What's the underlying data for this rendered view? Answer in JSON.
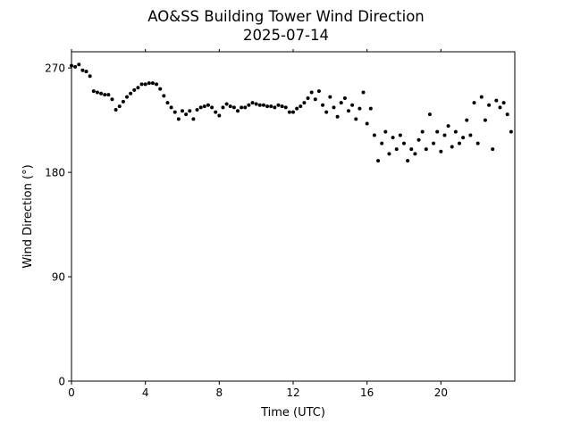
{
  "chart_data": {
    "type": "scatter",
    "title": "AO&SS Building Tower Wind Direction",
    "subtitle": "2025-07-14",
    "xlabel": "Time (UTC)",
    "ylabel": "Wind Direction (°)",
    "xlim": [
      0,
      24
    ],
    "ylim": [
      0,
      284
    ],
    "xticks": [
      0,
      4,
      8,
      12,
      16,
      20
    ],
    "xtick_labels": [
      "0",
      "4",
      "8",
      "12",
      "16",
      "20"
    ],
    "yticks": [
      0,
      90,
      180,
      270
    ],
    "ytick_labels": [
      "0",
      "90",
      "180",
      "270"
    ],
    "grid": false,
    "marker_color": "#000000",
    "x": [
      0.0,
      0.2,
      0.4,
      0.6,
      0.8,
      1.0,
      1.2,
      1.4,
      1.6,
      1.8,
      2.0,
      2.2,
      2.4,
      2.6,
      2.8,
      3.0,
      3.2,
      3.4,
      3.6,
      3.8,
      4.0,
      4.2,
      4.4,
      4.6,
      4.8,
      5.0,
      5.2,
      5.4,
      5.6,
      5.8,
      6.0,
      6.2,
      6.4,
      6.6,
      6.8,
      7.0,
      7.2,
      7.4,
      7.6,
      7.8,
      8.0,
      8.2,
      8.4,
      8.6,
      8.8,
      9.0,
      9.2,
      9.4,
      9.6,
      9.8,
      10.0,
      10.2,
      10.4,
      10.6,
      10.8,
      11.0,
      11.2,
      11.4,
      11.6,
      11.8,
      12.0,
      12.2,
      12.4,
      12.6,
      12.8,
      13.0,
      13.2,
      13.4,
      13.6,
      13.8,
      14.0,
      14.2,
      14.4,
      14.6,
      14.8,
      15.0,
      15.2,
      15.4,
      15.6,
      15.8,
      16.0,
      16.2,
      16.4,
      16.6,
      16.8,
      17.0,
      17.2,
      17.4,
      17.6,
      17.8,
      18.0,
      18.2,
      18.4,
      18.6,
      18.8,
      19.0,
      19.2,
      19.4,
      19.6,
      19.8,
      20.0,
      20.2,
      20.4,
      20.6,
      20.8,
      21.0,
      21.2,
      21.4,
      21.6,
      21.8,
      22.0,
      22.2,
      22.4,
      22.6,
      22.8,
      23.0,
      23.2,
      23.4,
      23.6,
      23.8
    ],
    "y": [
      272,
      271,
      273,
      268,
      267,
      263,
      250,
      249,
      248,
      247,
      247,
      243,
      234,
      237,
      241,
      245,
      248,
      251,
      253,
      256,
      256,
      257,
      257,
      256,
      252,
      246,
      240,
      236,
      232,
      226,
      233,
      230,
      233,
      226,
      234,
      236,
      237,
      238,
      236,
      232,
      229,
      236,
      239,
      237,
      236,
      233,
      236,
      236,
      238,
      240,
      239,
      238,
      238,
      237,
      237,
      236,
      238,
      237,
      236,
      232,
      232,
      235,
      237,
      240,
      244,
      249,
      243,
      250,
      238,
      232,
      245,
      236,
      228,
      240,
      244,
      233,
      238,
      226,
      235,
      249,
      222,
      235,
      212,
      190,
      205,
      215,
      196,
      210,
      200,
      212,
      205,
      190,
      200,
      196,
      208,
      215,
      200,
      230,
      205,
      215,
      198,
      212,
      220,
      202,
      215,
      205,
      210,
      225,
      212,
      240,
      205,
      245,
      225,
      238,
      200,
      242,
      236,
      240,
      230,
      215
    ]
  }
}
